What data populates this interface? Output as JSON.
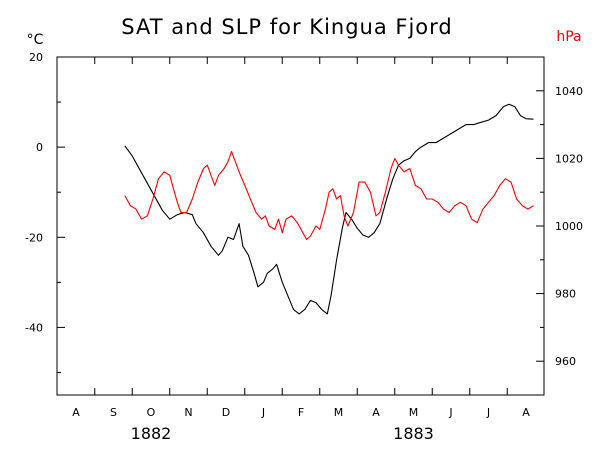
{
  "chart_data": {
    "type": "line",
    "title": "SAT and SLP for Kingua Fjord",
    "colors": {
      "sat": "#000000",
      "slp": "#ff0000"
    },
    "y_left": {
      "label": "°C",
      "range": [
        -55,
        20
      ],
      "ticks": [
        20,
        0,
        -20,
        -40
      ]
    },
    "y_right": {
      "label": "hPa",
      "range": [
        950,
        1050
      ],
      "ticks": [
        1040,
        1020,
        1000,
        980,
        960
      ]
    },
    "x": {
      "months": [
        "A",
        "S",
        "O",
        "N",
        "D",
        "J",
        "F",
        "M",
        "A",
        "M",
        "J",
        "J",
        "A"
      ],
      "years": [
        {
          "label": "1882",
          "month_index": 2
        },
        {
          "label": "1883",
          "month_index": 9
        }
      ]
    },
    "series": [
      {
        "unit": "°C",
        "axis": "left",
        "points": [
          [
            1.3,
            0.3
          ],
          [
            1.5,
            -2
          ],
          [
            1.7,
            -5
          ],
          [
            1.9,
            -8
          ],
          [
            2.1,
            -11
          ],
          [
            2.3,
            -14
          ],
          [
            2.5,
            -16
          ],
          [
            2.7,
            -15
          ],
          [
            2.9,
            -14.5
          ],
          [
            3.1,
            -15
          ],
          [
            3.2,
            -17
          ],
          [
            3.4,
            -19
          ],
          [
            3.6,
            -22
          ],
          [
            3.8,
            -24
          ],
          [
            3.9,
            -23
          ],
          [
            4.05,
            -20
          ],
          [
            4.2,
            -20.5
          ],
          [
            4.35,
            -17
          ],
          [
            4.45,
            -22
          ],
          [
            4.6,
            -24
          ],
          [
            4.75,
            -28
          ],
          [
            4.85,
            -31
          ],
          [
            5.0,
            -30
          ],
          [
            5.1,
            -28
          ],
          [
            5.25,
            -27
          ],
          [
            5.35,
            -26
          ],
          [
            5.5,
            -30
          ],
          [
            5.65,
            -33
          ],
          [
            5.8,
            -36
          ],
          [
            5.95,
            -37
          ],
          [
            6.1,
            -36
          ],
          [
            6.25,
            -34
          ],
          [
            6.4,
            -34.5
          ],
          [
            6.55,
            -36
          ],
          [
            6.7,
            -37
          ],
          [
            6.8,
            -33
          ],
          [
            6.95,
            -25
          ],
          [
            7.1,
            -18
          ],
          [
            7.2,
            -14.5
          ],
          [
            7.35,
            -16
          ],
          [
            7.5,
            -18
          ],
          [
            7.65,
            -19.5
          ],
          [
            7.8,
            -20
          ],
          [
            7.95,
            -19
          ],
          [
            8.1,
            -17
          ],
          [
            8.3,
            -11
          ],
          [
            8.45,
            -7
          ],
          [
            8.6,
            -4
          ],
          [
            8.75,
            -3
          ],
          [
            8.9,
            -2.5
          ],
          [
            9.05,
            -1
          ],
          [
            9.2,
            0
          ],
          [
            9.4,
            1
          ],
          [
            9.6,
            1
          ],
          [
            9.8,
            2
          ],
          [
            10.0,
            3
          ],
          [
            10.2,
            4
          ],
          [
            10.4,
            5
          ],
          [
            10.6,
            5
          ],
          [
            10.8,
            5.5
          ],
          [
            11.0,
            6
          ],
          [
            11.2,
            7
          ],
          [
            11.4,
            9
          ],
          [
            11.55,
            9.5
          ],
          [
            11.7,
            9
          ],
          [
            11.85,
            7
          ],
          [
            12.0,
            6.3
          ],
          [
            12.2,
            6.2
          ]
        ]
      },
      {
        "unit": "hPa",
        "axis": "right",
        "points": [
          [
            1.3,
            1009
          ],
          [
            1.45,
            1006
          ],
          [
            1.6,
            1005
          ],
          [
            1.75,
            1002
          ],
          [
            1.9,
            1003
          ],
          [
            2.05,
            1008
          ],
          [
            2.2,
            1014
          ],
          [
            2.35,
            1016
          ],
          [
            2.5,
            1015
          ],
          [
            2.6,
            1011
          ],
          [
            2.7,
            1007
          ],
          [
            2.8,
            1004
          ],
          [
            2.95,
            1004
          ],
          [
            3.1,
            1008
          ],
          [
            3.25,
            1013
          ],
          [
            3.4,
            1017
          ],
          [
            3.5,
            1018
          ],
          [
            3.6,
            1015
          ],
          [
            3.7,
            1012
          ],
          [
            3.8,
            1015
          ],
          [
            3.95,
            1017
          ],
          [
            4.05,
            1019
          ],
          [
            4.15,
            1022
          ],
          [
            4.25,
            1019
          ],
          [
            4.35,
            1016
          ],
          [
            4.5,
            1012
          ],
          [
            4.65,
            1008
          ],
          [
            4.8,
            1004
          ],
          [
            4.95,
            1002
          ],
          [
            5.05,
            1003
          ],
          [
            5.15,
            1000
          ],
          [
            5.3,
            999
          ],
          [
            5.4,
            1002
          ],
          [
            5.5,
            998
          ],
          [
            5.6,
            1002
          ],
          [
            5.75,
            1003
          ],
          [
            5.9,
            1001
          ],
          [
            6.05,
            998
          ],
          [
            6.15,
            996
          ],
          [
            6.25,
            997
          ],
          [
            6.4,
            1000
          ],
          [
            6.5,
            999
          ],
          [
            6.65,
            1005
          ],
          [
            6.75,
            1010
          ],
          [
            6.85,
            1011
          ],
          [
            6.95,
            1008
          ],
          [
            7.05,
            1009
          ],
          [
            7.15,
            1003
          ],
          [
            7.25,
            1000
          ],
          [
            7.4,
            1004
          ],
          [
            7.55,
            1013
          ],
          [
            7.7,
            1013
          ],
          [
            7.85,
            1010
          ],
          [
            8.0,
            1003
          ],
          [
            8.1,
            1004
          ],
          [
            8.25,
            1010
          ],
          [
            8.4,
            1017
          ],
          [
            8.5,
            1020
          ],
          [
            8.6,
            1018
          ],
          [
            8.75,
            1016
          ],
          [
            8.9,
            1017
          ],
          [
            9.05,
            1012
          ],
          [
            9.2,
            1011
          ],
          [
            9.35,
            1008
          ],
          [
            9.5,
            1008
          ],
          [
            9.65,
            1007
          ],
          [
            9.8,
            1005
          ],
          [
            9.95,
            1004
          ],
          [
            10.1,
            1006
          ],
          [
            10.25,
            1007
          ],
          [
            10.4,
            1006
          ],
          [
            10.55,
            1002
          ],
          [
            10.7,
            1001
          ],
          [
            10.85,
            1005
          ],
          [
            11.0,
            1007
          ],
          [
            11.15,
            1009
          ],
          [
            11.3,
            1012
          ],
          [
            11.45,
            1014
          ],
          [
            11.6,
            1013
          ],
          [
            11.75,
            1008
          ],
          [
            11.9,
            1006
          ],
          [
            12.05,
            1005
          ],
          [
            12.2,
            1006
          ]
        ]
      }
    ]
  }
}
